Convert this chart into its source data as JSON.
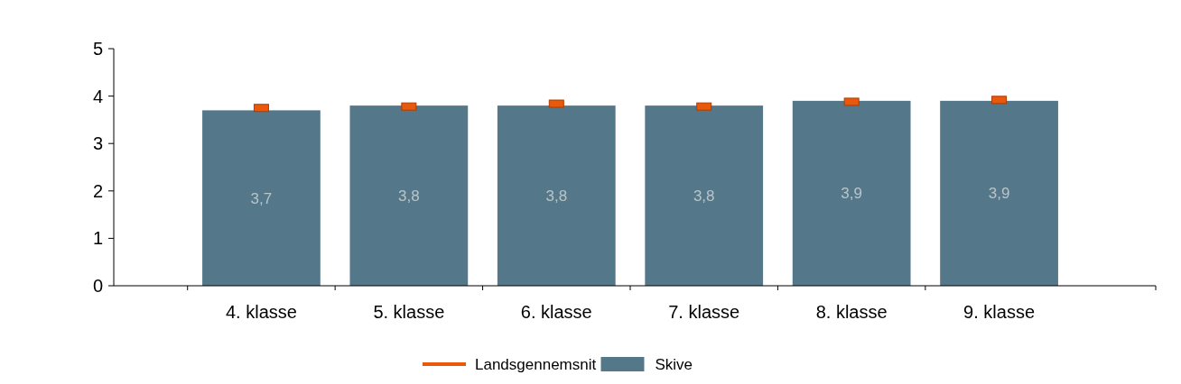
{
  "chart_data": {
    "type": "bar",
    "marker": "square",
    "categories": [
      "4. klasse",
      "5. klasse",
      "6. klasse",
      "7. klasse",
      "8. klasse",
      "9. klasse"
    ],
    "ylim": [
      0,
      5
    ],
    "yticks": [
      0,
      1,
      2,
      3,
      4,
      5
    ],
    "legend": "bottom",
    "grid": false,
    "series": [
      {
        "name": "Landsgennemsnit",
        "type": "scatter",
        "color": "#e8590c",
        "values": [
          3.75,
          3.78,
          3.84,
          3.78,
          3.88,
          3.92
        ]
      },
      {
        "name": "Skive",
        "type": "bar",
        "color": "#54788a",
        "values": [
          3.7,
          3.8,
          3.8,
          3.8,
          3.9,
          3.9
        ],
        "value_labels": [
          "3,7",
          "3,8",
          "3,8",
          "3,8",
          "3,9",
          "3,9"
        ]
      }
    ]
  }
}
